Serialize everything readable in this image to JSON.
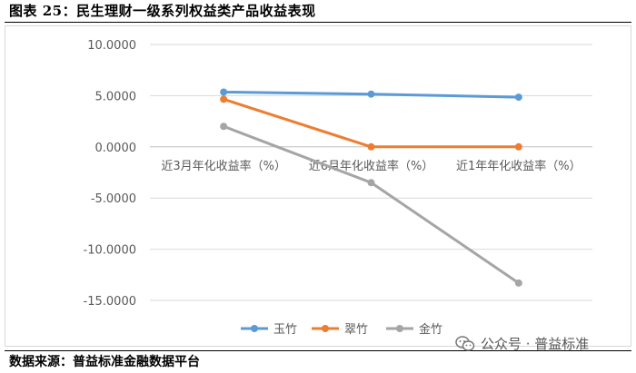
{
  "header": {
    "title": "图表 25：民生理财一级系列权益类产品收益表现"
  },
  "footer": {
    "source": "数据来源：普益标准金融数据平台"
  },
  "watermark": {
    "text": "公众号 · 普益标准",
    "icon": "wechat-icon"
  },
  "chart_data": {
    "type": "line",
    "categories": [
      "近3月年化收益率（%）",
      "近6月年化收益率（%）",
      "近1年年化收益率（%）"
    ],
    "series": [
      {
        "name": "玉竹",
        "color": "#5B9BD5",
        "values": [
          5.35,
          5.15,
          4.85
        ]
      },
      {
        "name": "翠竹",
        "color": "#ED7D31",
        "values": [
          4.65,
          0.0,
          0.0
        ]
      },
      {
        "name": "金竹",
        "color": "#A5A5A5",
        "values": [
          2.0,
          -3.5,
          -13.3
        ]
      }
    ],
    "ylim": [
      -15,
      10
    ],
    "yticks": [
      10,
      5,
      0,
      -5,
      -10,
      -15
    ],
    "ytick_labels": [
      "10.0000",
      "5.0000",
      "0.0000",
      "-5.0000",
      "-10.0000",
      "-15.0000"
    ],
    "grid": true,
    "legend": "bottom"
  }
}
